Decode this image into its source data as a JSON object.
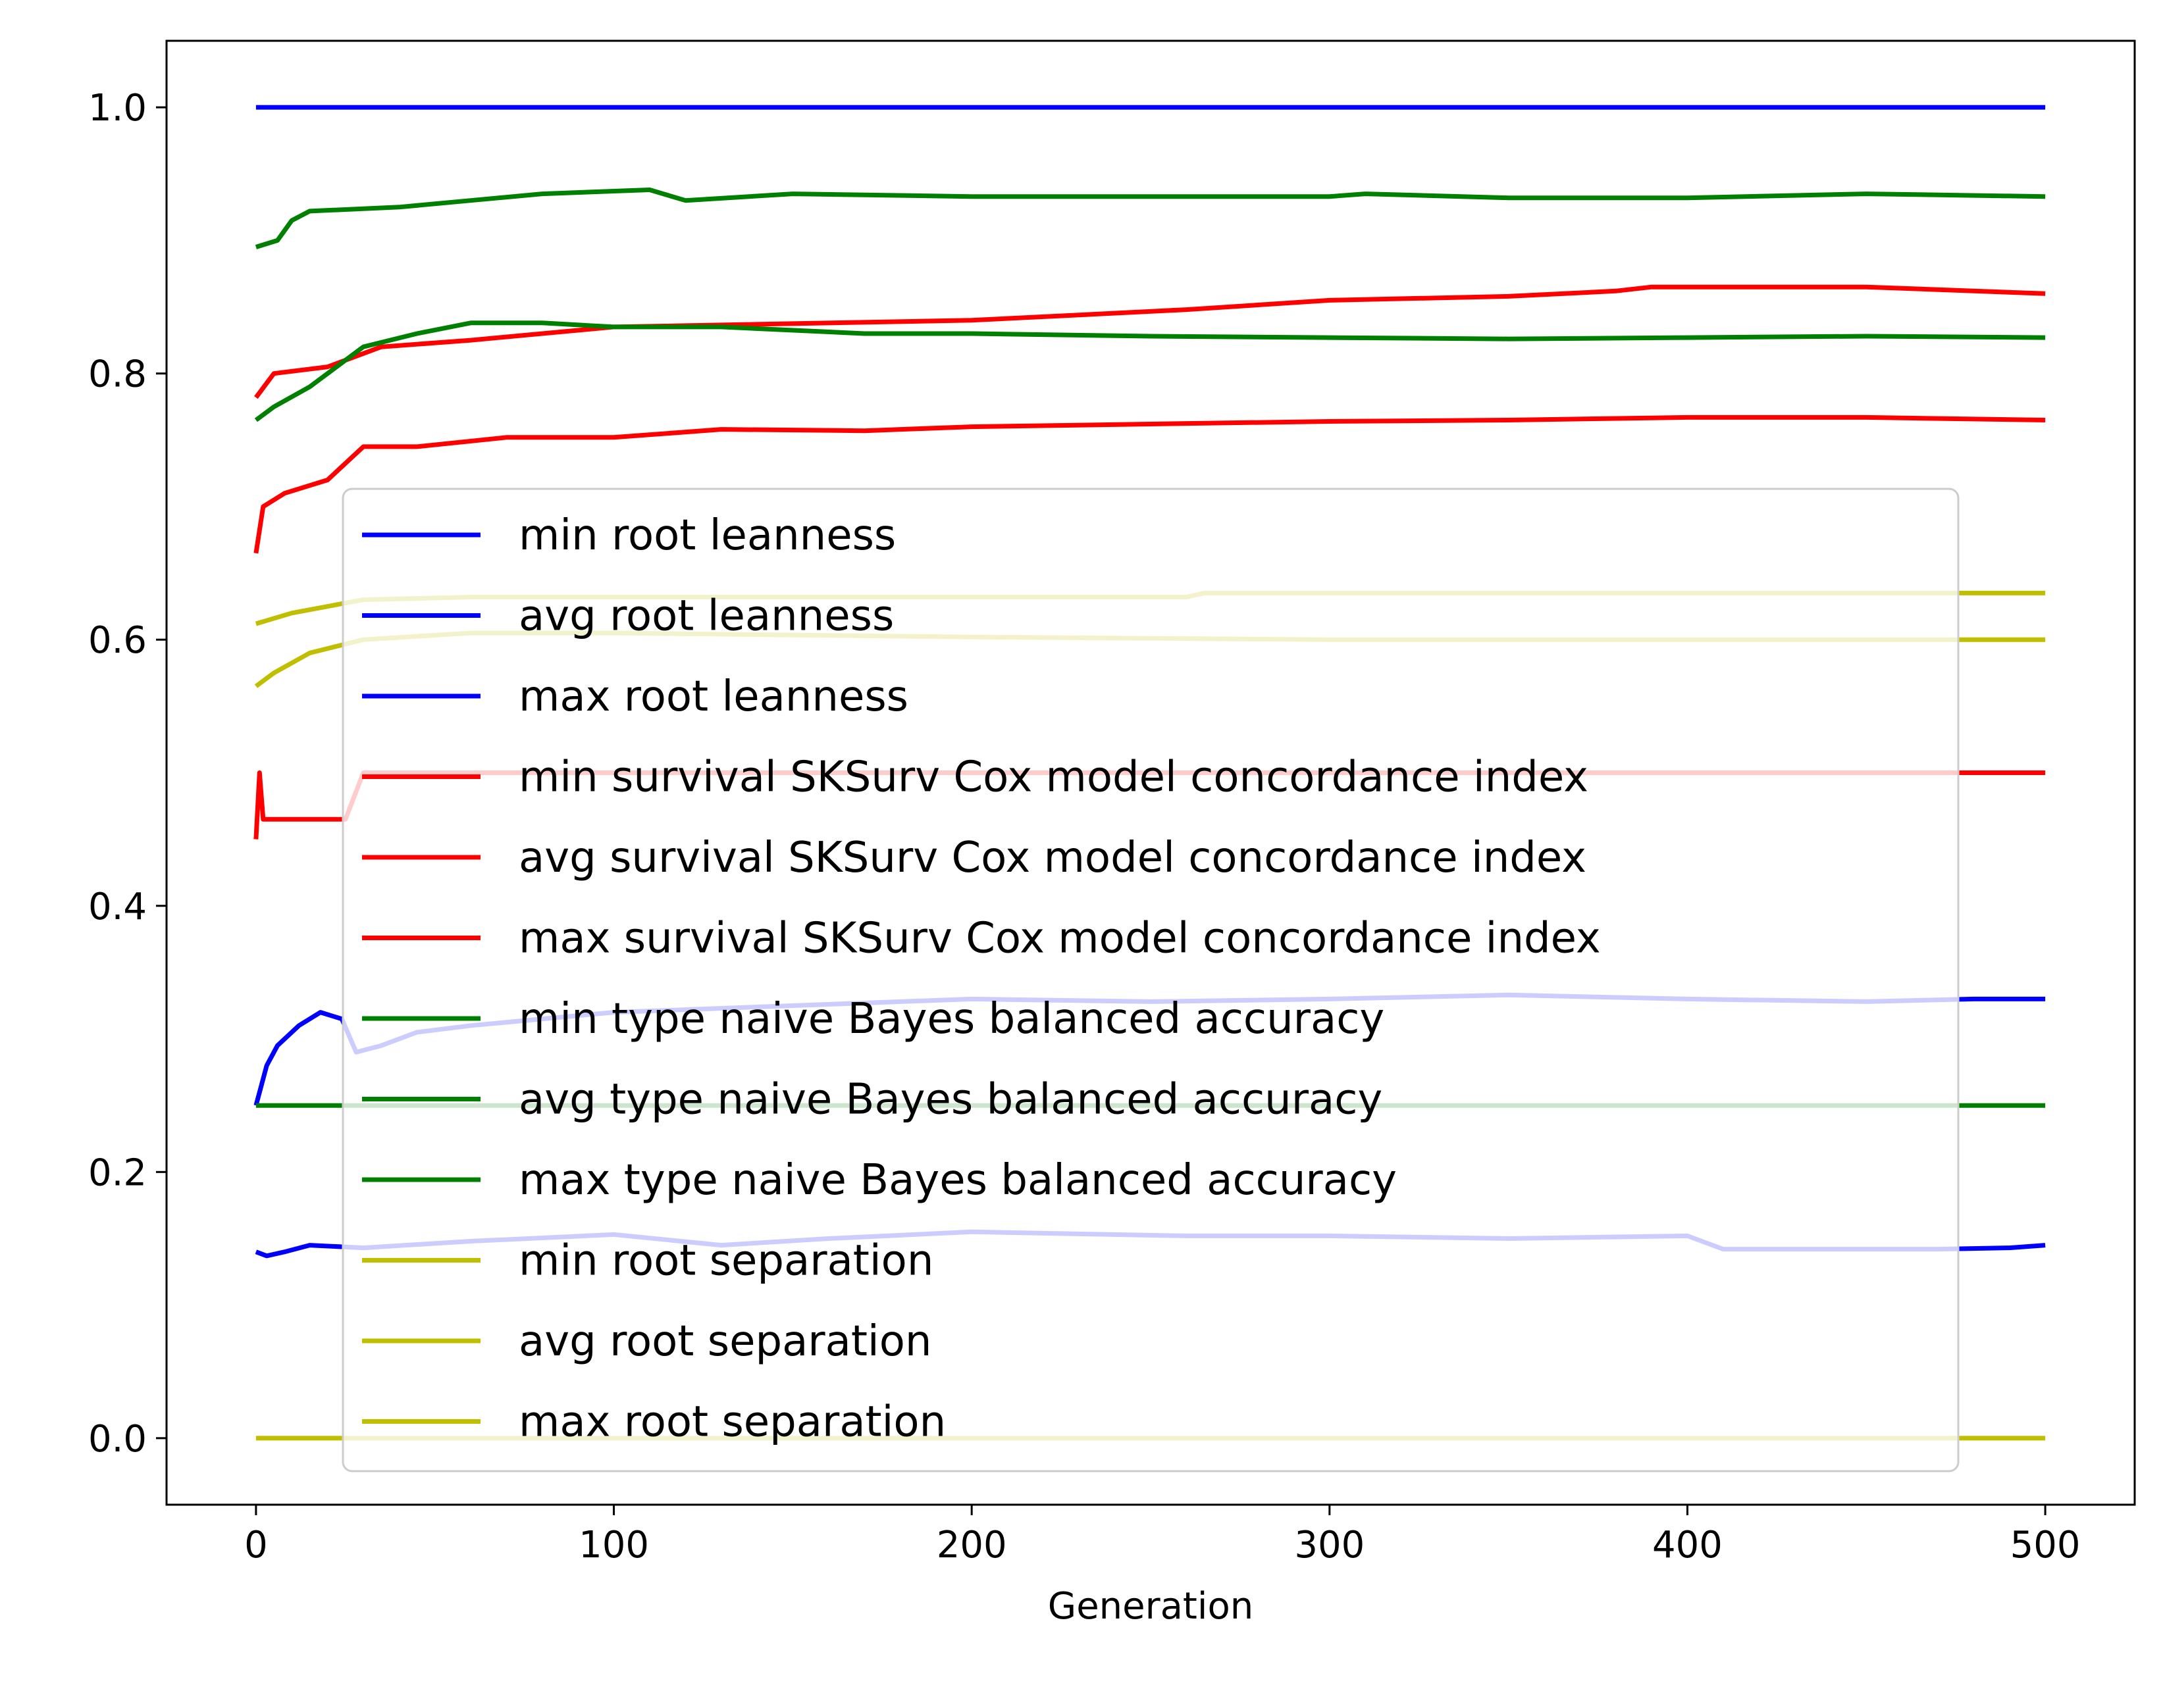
{
  "chart_data": {
    "type": "line",
    "title": "",
    "xlabel": "Generation",
    "ylabel": "",
    "xlim": [
      -25,
      525
    ],
    "ylim": [
      -0.05,
      1.05
    ],
    "xticks": [
      0,
      100,
      200,
      300,
      400,
      500
    ],
    "xtick_labels": [
      "0",
      "100",
      "200",
      "300",
      "400",
      "500"
    ],
    "yticks": [
      0.0,
      0.2,
      0.4,
      0.6,
      0.8,
      1.0
    ],
    "ytick_labels": [
      "0.0",
      "0.2",
      "0.4",
      "0.6",
      "0.8",
      "1.0"
    ],
    "grid": false,
    "legend_position": "center",
    "colors": {
      "blue": "#0000ff",
      "red": "#ff0000",
      "green": "#008000",
      "yellow": "#bfbf00"
    },
    "series": [
      {
        "name": "min root leanness",
        "color": "#0000ff",
        "points": [
          [
            0,
            0.14
          ],
          [
            3,
            0.137
          ],
          [
            8,
            0.14
          ],
          [
            15,
            0.145
          ],
          [
            30,
            0.143
          ],
          [
            60,
            0.148
          ],
          [
            100,
            0.153
          ],
          [
            130,
            0.145
          ],
          [
            160,
            0.15
          ],
          [
            200,
            0.155
          ],
          [
            260,
            0.152
          ],
          [
            300,
            0.152
          ],
          [
            350,
            0.15
          ],
          [
            400,
            0.152
          ],
          [
            410,
            0.142
          ],
          [
            470,
            0.142
          ],
          [
            490,
            0.143
          ],
          [
            500,
            0.145
          ]
        ]
      },
      {
        "name": "avg root leanness",
        "color": "#0000ff",
        "points": [
          [
            0,
            0.25
          ],
          [
            3,
            0.28
          ],
          [
            6,
            0.295
          ],
          [
            12,
            0.31
          ],
          [
            18,
            0.32
          ],
          [
            24,
            0.315
          ],
          [
            28,
            0.29
          ],
          [
            35,
            0.295
          ],
          [
            45,
            0.305
          ],
          [
            60,
            0.31
          ],
          [
            100,
            0.32
          ],
          [
            150,
            0.325
          ],
          [
            200,
            0.33
          ],
          [
            250,
            0.328
          ],
          [
            300,
            0.33
          ],
          [
            350,
            0.333
          ],
          [
            400,
            0.33
          ],
          [
            450,
            0.328
          ],
          [
            480,
            0.33
          ],
          [
            500,
            0.33
          ]
        ]
      },
      {
        "name": "max root leanness",
        "color": "#0000ff",
        "points": [
          [
            0,
            1.0
          ],
          [
            500,
            1.0
          ]
        ]
      },
      {
        "name": "min survival SKSurv Cox model concordance index",
        "color": "#ff0000",
        "points": [
          [
            0,
            0.45
          ],
          [
            1,
            0.5
          ],
          [
            2,
            0.465
          ],
          [
            25,
            0.465
          ],
          [
            30,
            0.5
          ],
          [
            500,
            0.5
          ]
        ]
      },
      {
        "name": "avg survival SKSurv Cox model concordance index",
        "color": "#ff0000",
        "points": [
          [
            0,
            0.665
          ],
          [
            2,
            0.7
          ],
          [
            8,
            0.71
          ],
          [
            20,
            0.72
          ],
          [
            30,
            0.745
          ],
          [
            45,
            0.745
          ],
          [
            70,
            0.752
          ],
          [
            100,
            0.752
          ],
          [
            130,
            0.758
          ],
          [
            170,
            0.757
          ],
          [
            200,
            0.76
          ],
          [
            250,
            0.762
          ],
          [
            300,
            0.764
          ],
          [
            350,
            0.765
          ],
          [
            400,
            0.767
          ],
          [
            450,
            0.767
          ],
          [
            500,
            0.765
          ]
        ]
      },
      {
        "name": "max survival SKSurv Cox model concordance index",
        "color": "#ff0000",
        "points": [
          [
            0,
            0.782
          ],
          [
            5,
            0.8
          ],
          [
            20,
            0.805
          ],
          [
            35,
            0.82
          ],
          [
            60,
            0.825
          ],
          [
            100,
            0.835
          ],
          [
            200,
            0.84
          ],
          [
            260,
            0.848
          ],
          [
            300,
            0.855
          ],
          [
            350,
            0.858
          ],
          [
            380,
            0.862
          ],
          [
            390,
            0.865
          ],
          [
            450,
            0.865
          ],
          [
            500,
            0.86
          ]
        ]
      },
      {
        "name": "min type naive Bayes balanced accuracy",
        "color": "#008000",
        "points": [
          [
            0,
            0.25
          ],
          [
            500,
            0.25
          ]
        ]
      },
      {
        "name": "avg type naive Bayes balanced accuracy",
        "color": "#008000",
        "points": [
          [
            0,
            0.765
          ],
          [
            5,
            0.775
          ],
          [
            15,
            0.79
          ],
          [
            30,
            0.82
          ],
          [
            45,
            0.83
          ],
          [
            60,
            0.838
          ],
          [
            80,
            0.838
          ],
          [
            100,
            0.835
          ],
          [
            130,
            0.835
          ],
          [
            170,
            0.83
          ],
          [
            200,
            0.83
          ],
          [
            250,
            0.828
          ],
          [
            300,
            0.827
          ],
          [
            350,
            0.826
          ],
          [
            400,
            0.827
          ],
          [
            450,
            0.828
          ],
          [
            500,
            0.827
          ]
        ]
      },
      {
        "name": "max type naive Bayes balanced accuracy",
        "color": "#008000",
        "points": [
          [
            0,
            0.895
          ],
          [
            6,
            0.9
          ],
          [
            10,
            0.915
          ],
          [
            15,
            0.922
          ],
          [
            40,
            0.925
          ],
          [
            60,
            0.93
          ],
          [
            80,
            0.935
          ],
          [
            110,
            0.938
          ],
          [
            120,
            0.93
          ],
          [
            150,
            0.935
          ],
          [
            200,
            0.933
          ],
          [
            300,
            0.933
          ],
          [
            310,
            0.935
          ],
          [
            350,
            0.932
          ],
          [
            400,
            0.932
          ],
          [
            450,
            0.935
          ],
          [
            500,
            0.933
          ]
        ]
      },
      {
        "name": "min root separation",
        "color": "#bfbf00",
        "points": [
          [
            0,
            0.0
          ],
          [
            500,
            0.0
          ]
        ]
      },
      {
        "name": "avg root separation",
        "color": "#bfbf00",
        "points": [
          [
            0,
            0.565
          ],
          [
            5,
            0.575
          ],
          [
            15,
            0.59
          ],
          [
            30,
            0.6
          ],
          [
            60,
            0.605
          ],
          [
            100,
            0.605
          ],
          [
            200,
            0.602
          ],
          [
            300,
            0.6
          ],
          [
            400,
            0.6
          ],
          [
            500,
            0.6
          ]
        ]
      },
      {
        "name": "max root separation",
        "color": "#bfbf00",
        "points": [
          [
            0,
            0.612
          ],
          [
            10,
            0.62
          ],
          [
            30,
            0.63
          ],
          [
            60,
            0.632
          ],
          [
            100,
            0.632
          ],
          [
            150,
            0.632
          ],
          [
            260,
            0.632
          ],
          [
            265,
            0.635
          ],
          [
            500,
            0.635
          ]
        ]
      }
    ]
  }
}
